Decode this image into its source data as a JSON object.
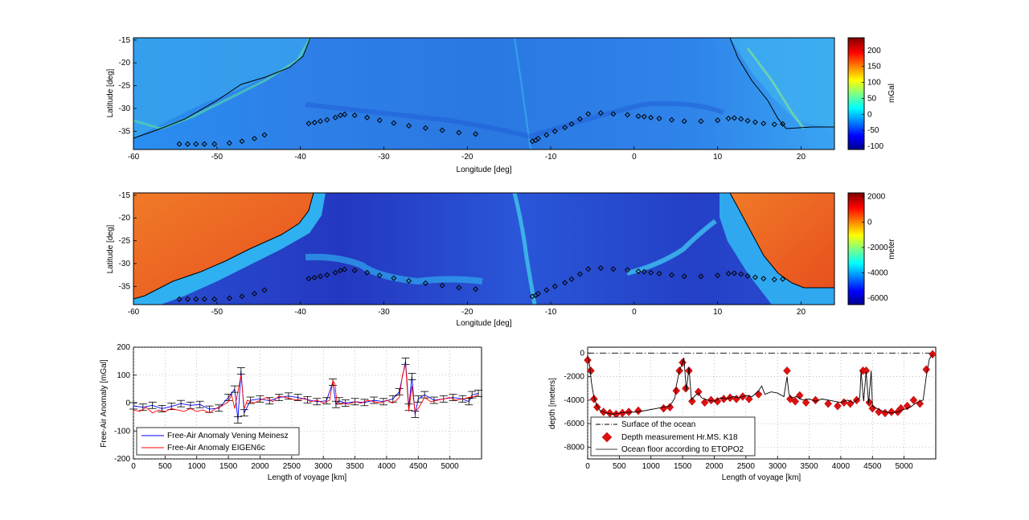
{
  "chart_data": [
    {
      "type": "heatmap",
      "xlabel": "Longitude [deg]",
      "ylabel": "Latitude [deg]",
      "xlim": [
        -60,
        24
      ],
      "ylim": [
        -39,
        -14.5
      ],
      "xticks": [
        -60,
        -50,
        -40,
        -30,
        -20,
        -10,
        0,
        10,
        20
      ],
      "yticks": [
        -15,
        -20,
        -25,
        -30,
        -35
      ],
      "colorbar": {
        "label": "mGal",
        "range": [
          -110,
          240
        ],
        "ticks": [
          200,
          150,
          100,
          50,
          0,
          -50,
          -100
        ]
      },
      "colors": {
        "low": "#0000a8",
        "mid": "#2f8ff0",
        "high": "#a80000"
      },
      "stations": [
        [
          -54.5,
          -37.8
        ],
        [
          -53.5,
          -37.8
        ],
        [
          -52.5,
          -37.8
        ],
        [
          -51.5,
          -37.8
        ],
        [
          -50.3,
          -37.8
        ],
        [
          -48.5,
          -37.6
        ],
        [
          -47,
          -37.2
        ],
        [
          -45.5,
          -36.6
        ],
        [
          -44.3,
          -35.8
        ],
        [
          -39,
          -33.3
        ],
        [
          -38.3,
          -33.1
        ],
        [
          -37.6,
          -32.8
        ],
        [
          -36.8,
          -32.5
        ],
        [
          -35.8,
          -32
        ],
        [
          -35.2,
          -31.5
        ],
        [
          -34.7,
          -31.3
        ],
        [
          -33.5,
          -31.5
        ],
        [
          -32,
          -32
        ],
        [
          -30.5,
          -32.6
        ],
        [
          -28.8,
          -33.2
        ],
        [
          -27,
          -33.8
        ],
        [
          -25,
          -34.3
        ],
        [
          -23,
          -34.8
        ],
        [
          -21,
          -35.3
        ],
        [
          -19,
          -35.6
        ],
        [
          -12.2,
          -37.2
        ],
        [
          -11.8,
          -37
        ],
        [
          -11.5,
          -36.6
        ],
        [
          -10.5,
          -35.8
        ],
        [
          -9.5,
          -35
        ],
        [
          -8.3,
          -34.2
        ],
        [
          -7.5,
          -33.4
        ],
        [
          -6.5,
          -32.3
        ],
        [
          -5.5,
          -31.2
        ],
        [
          -4,
          -31
        ],
        [
          -2.5,
          -31.2
        ],
        [
          -0.8,
          -31.4
        ],
        [
          0.5,
          -31.7
        ],
        [
          1.2,
          -31.8
        ],
        [
          2,
          -32
        ],
        [
          3,
          -32.2
        ],
        [
          4.5,
          -32.5
        ],
        [
          6,
          -32.8
        ],
        [
          8,
          -32.8
        ],
        [
          10,
          -32.6
        ],
        [
          11.3,
          -32.2
        ],
        [
          12,
          -32.1
        ],
        [
          12.8,
          -32.3
        ],
        [
          13.6,
          -32.7
        ],
        [
          14.5,
          -33
        ],
        [
          15.5,
          -33.3
        ],
        [
          16.8,
          -33.5
        ],
        [
          17.8,
          -33.4
        ]
      ]
    },
    {
      "type": "heatmap",
      "xlabel": "Longitude [deg]",
      "ylabel": "Latitude [deg]",
      "xlim": [
        -60,
        24
      ],
      "ylim": [
        -39,
        -14.5
      ],
      "xticks": [
        -60,
        -50,
        -40,
        -30,
        -20,
        -10,
        0,
        10,
        20
      ],
      "yticks": [
        -15,
        -20,
        -25,
        -30,
        -35
      ],
      "colorbar": {
        "label": "meter",
        "range": [
          -6500,
          2300
        ],
        "ticks": [
          2000,
          0,
          -2000,
          -4000,
          -6000
        ]
      },
      "colors": {
        "deep": "#1e2fb8",
        "ocean": "#2a55d8",
        "shelf": "#2fa8f0",
        "land": "#e8501e"
      }
    },
    {
      "type": "line",
      "xlabel": "Length of voyage [km]",
      "ylabel": "Free-Air Anomaly [mGal]",
      "xlim": [
        0,
        5500
      ],
      "ylim": [
        -200,
        200
      ],
      "xticks": [
        0,
        500,
        1000,
        1500,
        2000,
        2500,
        3000,
        3500,
        4000,
        4500,
        5000
      ],
      "yticks": [
        200,
        100,
        0,
        -100,
        -200
      ],
      "grid": true,
      "legend": "bottom-left",
      "series": [
        {
          "name": "Free-Air Anomaly Vening Meinesz",
          "color": "#0000ff",
          "x": [
            0,
            150,
            300,
            450,
            600,
            750,
            900,
            1050,
            1200,
            1350,
            1500,
            1600,
            1650,
            1700,
            1750,
            1850,
            2000,
            2150,
            2300,
            2450,
            2600,
            2750,
            2900,
            3050,
            3150,
            3200,
            3250,
            3350,
            3500,
            3650,
            3800,
            3950,
            4100,
            4200,
            4300,
            4350,
            4400,
            4450,
            4500,
            4600,
            4750,
            4900,
            5050,
            5200,
            5300,
            5350,
            5450
          ],
          "y": [
            -10,
            -15,
            -8,
            -20,
            -12,
            -2,
            -8,
            -5,
            -22,
            -18,
            20,
            50,
            -60,
            115,
            -35,
            10,
            15,
            8,
            20,
            25,
            20,
            12,
            5,
            8,
            75,
            -5,
            8,
            0,
            5,
            2,
            10,
            5,
            15,
            40,
            150,
            -15,
            95,
            -40,
            15,
            30,
            10,
            15,
            20,
            15,
            5,
            30,
            35
          ]
        },
        {
          "name": "Free-Air Anomaly EIGEN6c",
          "color": "#ff0000",
          "x": [
            0,
            100,
            200,
            300,
            400,
            500,
            600,
            700,
            800,
            900,
            1000,
            1100,
            1200,
            1300,
            1400,
            1500,
            1550,
            1600,
            1650,
            1700,
            1750,
            1800,
            1900,
            2000,
            2100,
            2200,
            2300,
            2400,
            2500,
            2600,
            2700,
            2800,
            2900,
            3000,
            3100,
            3150,
            3180,
            3220,
            3300,
            3400,
            3500,
            3600,
            3700,
            3800,
            3900,
            4000,
            4100,
            4200,
            4250,
            4300,
            4350,
            4400,
            4450,
            4500,
            4550,
            4600,
            4700,
            4800,
            4900,
            5000,
            5100,
            5200,
            5300,
            5400,
            5450
          ],
          "y": [
            -25,
            -30,
            -15,
            -35,
            -25,
            -30,
            -20,
            -25,
            -30,
            -20,
            -30,
            -25,
            -35,
            -20,
            -10,
            5,
            30,
            -20,
            40,
            100,
            -20,
            10,
            0,
            10,
            20,
            5,
            25,
            20,
            15,
            10,
            18,
            5,
            10,
            0,
            10,
            80,
            70,
            -5,
            0,
            -5,
            5,
            0,
            10,
            5,
            0,
            10,
            0,
            20,
            100,
            140,
            -30,
            60,
            -30,
            -20,
            0,
            20,
            5,
            10,
            15,
            20,
            10,
            15,
            20,
            25,
            30
          ]
        }
      ]
    },
    {
      "type": "line",
      "xlabel": "Length of voyage [km]",
      "ylabel": "depth [meters]",
      "xlim": [
        0,
        5500
      ],
      "ylim": [
        -9000,
        500
      ],
      "xticks": [
        0,
        500,
        1000,
        1500,
        2000,
        2500,
        3000,
        3500,
        4000,
        4500,
        5000
      ],
      "yticks": [
        0,
        -2000,
        -4000,
        -6000,
        -8000
      ],
      "grid": true,
      "legend": "bottom-left",
      "series": [
        {
          "name": "Surface of the ocean",
          "color": "#000000",
          "style": "dash-dot",
          "x": [
            0,
            5500
          ],
          "y": [
            0,
            0
          ]
        },
        {
          "name": "Depth measurement Hr.MS. K18",
          "color": "#dd1111",
          "style": "diamond",
          "x": [
            0,
            50,
            100,
            150,
            250,
            350,
            450,
            550,
            650,
            800,
            1200,
            1300,
            1400,
            1450,
            1500,
            1550,
            1600,
            1650,
            1750,
            1850,
            1950,
            2050,
            2150,
            2250,
            2350,
            2450,
            2550,
            2700,
            3150,
            3200,
            3280,
            3350,
            3450,
            3600,
            3800,
            3950,
            4050,
            4150,
            4250,
            4350,
            4400,
            4450,
            4500,
            4600,
            4700,
            4800,
            4900,
            4950,
            5050,
            5150,
            5250,
            5350,
            5450
          ],
          "y": [
            -600,
            -1500,
            -3900,
            -4600,
            -5000,
            -5100,
            -5200,
            -5100,
            -5000,
            -4900,
            -4700,
            -4600,
            -3200,
            -1500,
            -800,
            -3000,
            -1500,
            -4100,
            -3300,
            -4200,
            -4000,
            -4100,
            -3900,
            -3800,
            -3900,
            -3700,
            -3900,
            -3500,
            -1500,
            -3900,
            -4100,
            -3600,
            -4200,
            -4000,
            -4300,
            -4500,
            -4200,
            -4300,
            -4000,
            -1500,
            -1500,
            -4200,
            -4700,
            -5000,
            -5100,
            -5000,
            -5000,
            -4700,
            -4500,
            -4000,
            -4300,
            -1400,
            -100
          ]
        },
        {
          "name": "Ocean floor according to ETOPO2",
          "color": "#000000",
          "style": "solid",
          "x": [
            0,
            30,
            60,
            100,
            150,
            200,
            300,
            400,
            500,
            600,
            800,
            1000,
            1100,
            1200,
            1300,
            1380,
            1400,
            1450,
            1500,
            1520,
            1560,
            1600,
            1640,
            1700,
            1750,
            1800,
            1900,
            2000,
            2100,
            2200,
            2300,
            2400,
            2500,
            2600,
            2700,
            2750,
            2800,
            2900,
            3000,
            3100,
            3150,
            3180,
            3220,
            3300,
            3400,
            3500,
            3600,
            3700,
            3800,
            3900,
            4000,
            4100,
            4200,
            4300,
            4320,
            4360,
            4400,
            4440,
            4480,
            4500,
            4600,
            4700,
            4800,
            4900,
            5000,
            5100,
            5200,
            5300,
            5350,
            5400,
            5450
          ],
          "y": [
            -200,
            -1000,
            -2500,
            -3800,
            -4500,
            -4900,
            -5100,
            -5200,
            -5100,
            -5050,
            -5000,
            -4800,
            -4700,
            -4600,
            -4500,
            -3800,
            -2800,
            -1500,
            -800,
            -400,
            -3200,
            -1200,
            -4000,
            -3600,
            -3400,
            -3800,
            -4000,
            -4100,
            -3800,
            -3900,
            -3700,
            -3800,
            -3600,
            -3700,
            -3200,
            -2800,
            -3500,
            -3300,
            -3400,
            -3700,
            -2000,
            -3500,
            -3800,
            -3700,
            -4000,
            -3900,
            -4100,
            -3900,
            -4000,
            -4100,
            -4200,
            -4000,
            -4200,
            -3800,
            -1500,
            -4100,
            -1600,
            -4300,
            -1500,
            -4500,
            -4800,
            -5000,
            -5100,
            -5000,
            -4800,
            -4600,
            -4200,
            -4000,
            -2000,
            -500,
            -100
          ]
        }
      ]
    }
  ]
}
